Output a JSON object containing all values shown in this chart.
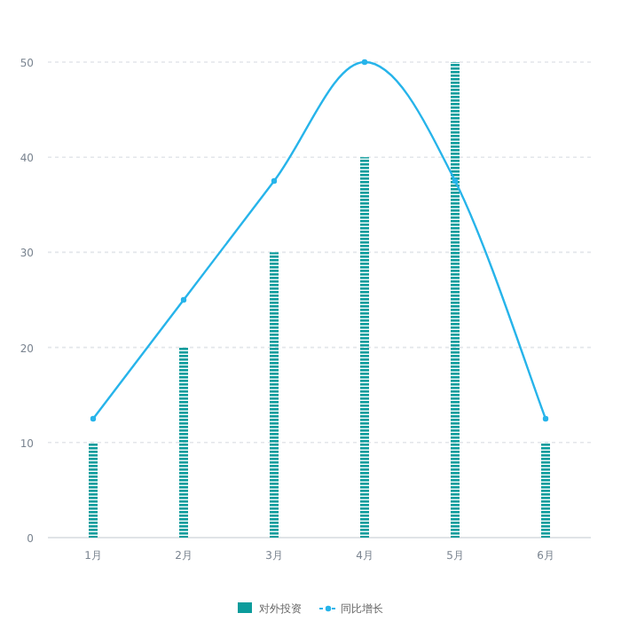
{
  "chart_data": {
    "type": "bar",
    "categories": [
      "1月",
      "2月",
      "3月",
      "4月",
      "5月",
      "6月"
    ],
    "ylim": [
      0,
      50
    ],
    "yticks": [
      0,
      10,
      20,
      30,
      40,
      50
    ],
    "grid": "y",
    "legend": "bottom",
    "series": [
      {
        "name": "对外投资",
        "color": "#0b9c9c",
        "values": [
          10,
          20,
          30,
          40,
          50,
          10
        ]
      },
      {
        "name": "同比增长",
        "type": "line",
        "color": "#27b4ea",
        "marker": "circle",
        "values": [
          12.5,
          25,
          37.5,
          50,
          37.5,
          12.5
        ]
      }
    ]
  }
}
